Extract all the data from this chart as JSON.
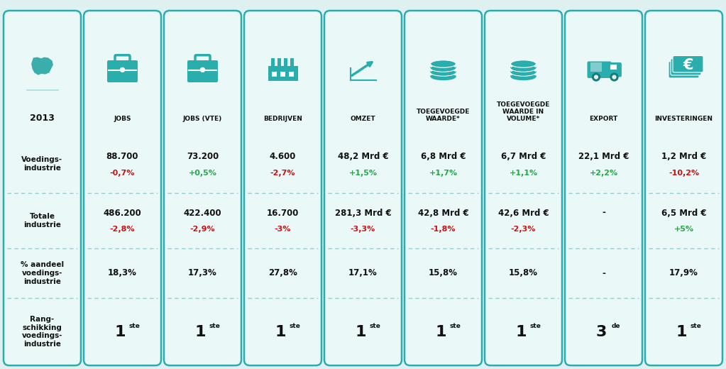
{
  "bg_color": "#dff0f0",
  "card_bg_light": "#eaf8f8",
  "card_bg_teal": "#3ab5b5",
  "teal": "#2aadad",
  "teal_dark": "#1a9090",
  "red": "#cc1111",
  "green": "#22aa44",
  "dark": "#1a1a1a",
  "figsize": [
    10.23,
    5.2
  ],
  "dpi": 100,
  "columns": [
    {
      "id": "year",
      "header_label": "2013",
      "header_sub": "",
      "is_label_col": true,
      "voedings_main": "",
      "voedings_pct": "",
      "voedings_pct_color": "dark",
      "totale_main": "",
      "totale_pct": "",
      "totale_pct_color": "dark",
      "aandeel": "",
      "rang": "",
      "rang_super": ""
    },
    {
      "id": "jobs",
      "header_label": "JOBS",
      "header_sub": "",
      "is_label_col": false,
      "voedings_main": "88.700",
      "voedings_pct": "-0,7%",
      "voedings_pct_color": "red",
      "totale_main": "486.200",
      "totale_pct": "-2,8%",
      "totale_pct_color": "red",
      "aandeel": "18,3%",
      "rang": "1",
      "rang_super": "ste"
    },
    {
      "id": "jobs_vte",
      "header_label": "JOBS (VTE)",
      "header_sub": "",
      "is_label_col": false,
      "voedings_main": "73.200",
      "voedings_pct": "+0,5%",
      "voedings_pct_color": "green",
      "totale_main": "422.400",
      "totale_pct": "-2,9%",
      "totale_pct_color": "red",
      "aandeel": "17,3%",
      "rang": "1",
      "rang_super": "ste"
    },
    {
      "id": "bedrijven",
      "header_label": "BEDRIJVEN",
      "header_sub": "",
      "is_label_col": false,
      "voedings_main": "4.600",
      "voedings_pct": "-2,7%",
      "voedings_pct_color": "red",
      "totale_main": "16.700",
      "totale_pct": "-3%",
      "totale_pct_color": "red",
      "aandeel": "27,8%",
      "rang": "1",
      "rang_super": "ste"
    },
    {
      "id": "omzet",
      "header_label": "OMZET",
      "header_sub": "",
      "is_label_col": false,
      "voedings_main": "48,2 Mrd €",
      "voedings_pct": "+1,5%",
      "voedings_pct_color": "green",
      "totale_main": "281,3 Mrd €",
      "totale_pct": "-3,3%",
      "totale_pct_color": "red",
      "aandeel": "17,1%",
      "rang": "1",
      "rang_super": "ste"
    },
    {
      "id": "toegevoegde",
      "header_label": "TOEGEVOEGDE\nWAARDE*",
      "header_sub": "",
      "is_label_col": false,
      "voedings_main": "6,8 Mrd €",
      "voedings_pct": "+1,7%",
      "voedings_pct_color": "green",
      "totale_main": "42,8 Mrd €",
      "totale_pct": "-1,8%",
      "totale_pct_color": "red",
      "aandeel": "15,8%",
      "rang": "1",
      "rang_super": "ste"
    },
    {
      "id": "toegevoegde_vol",
      "header_label": "TOEGEVOEGDE\nWAARDE IN\nVOLUME*",
      "header_sub": "",
      "is_label_col": false,
      "voedings_main": "6,7 Mrd €",
      "voedings_pct": "+1,1%",
      "voedings_pct_color": "green",
      "totale_main": "42,6 Mrd €",
      "totale_pct": "-2,3%",
      "totale_pct_color": "red",
      "aandeel": "15,8%",
      "rang": "1",
      "rang_super": "ste"
    },
    {
      "id": "export",
      "header_label": "EXPORT",
      "header_sub": "",
      "is_label_col": false,
      "voedings_main": "22,1 Mrd €",
      "voedings_pct": "+2,2%",
      "voedings_pct_color": "green",
      "totale_main": "-",
      "totale_pct": "",
      "totale_pct_color": "dark",
      "aandeel": "-",
      "rang": "3",
      "rang_super": "de"
    },
    {
      "id": "investeringen",
      "header_label": "INVESTERINGEN",
      "header_sub": "",
      "is_label_col": false,
      "voedings_main": "1,2 Mrd €",
      "voedings_pct": "-10,2%",
      "voedings_pct_color": "red",
      "totale_main": "6,5 Mrd €",
      "totale_pct": "+5%",
      "totale_pct_color": "green",
      "aandeel": "17,9%",
      "rang": "1",
      "rang_super": "ste"
    }
  ],
  "row_labels": [
    "Voedings-\nindustrie",
    "Totale\nindustrie",
    "% aandeel\nvoedings-\nindustrie",
    "Rang-\nschikking\nvoedings-\nindustrie"
  ],
  "icons": {
    "jobs": "💼",
    "jobs_vte": "💼",
    "bedrijven": "🏭",
    "omzet": "📈",
    "toegevoegde": "💰",
    "toegevoegde_vol": "💰",
    "export": "🚚",
    "investeringen": "💵"
  }
}
